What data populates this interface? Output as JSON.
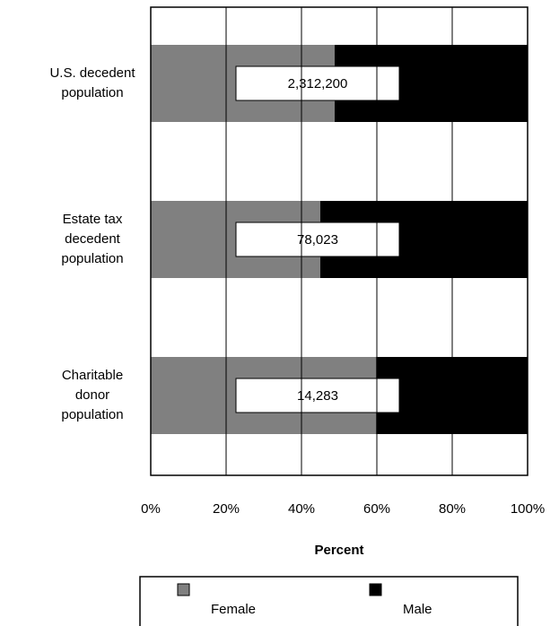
{
  "chart_data": {
    "type": "stacked_barh",
    "categories": [
      "U.S. decedent population",
      "Estate tax decedent population",
      "Charitable donor population"
    ],
    "series": [
      {
        "name": "Female",
        "color": "#808080",
        "values": [
          48.8,
          45.0,
          59.8
        ]
      },
      {
        "name": "Male",
        "color": "#000000",
        "values": [
          51.2,
          55.0,
          40.2
        ]
      }
    ],
    "counts": [
      2312200,
      78023,
      14283
    ],
    "count_labels": [
      "2,312,200",
      "78,023",
      "14,283"
    ],
    "xlabel": "Percent",
    "xlim": [
      0,
      100
    ],
    "xticks": [
      {
        "value": 0,
        "label": "0%"
      },
      {
        "value": 20,
        "label": "20%"
      },
      {
        "value": 40,
        "label": "40%"
      },
      {
        "value": 60,
        "label": "60%"
      },
      {
        "value": 80,
        "label": "80%"
      },
      {
        "value": 100,
        "label": "100%"
      }
    ],
    "grid": true,
    "legend": "bottom"
  }
}
